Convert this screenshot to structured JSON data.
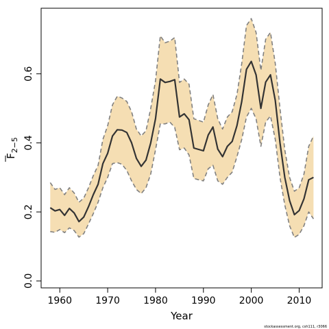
{
  "chart_data": {
    "type": "line",
    "xlabel": "Year",
    "ylabel": {
      "main": "F",
      "subscript": "2−5"
    },
    "xlim": [
      1956.1,
      2014.8
    ],
    "ylim": [
      -0.02,
      0.79
    ],
    "x_ticks": [
      1960,
      1970,
      1980,
      1990,
      2000,
      2010
    ],
    "y_ticks": [
      0.0,
      0.2,
      0.4,
      0.6
    ],
    "y_tick_labels": [
      "0.0",
      "0.2",
      "0.4",
      "0.6"
    ],
    "grid": false,
    "credit": "stockassessment.org, csh111, r3066",
    "colors": {
      "band": "#f5deb3",
      "bound_line": "#808080",
      "estimate_line": "#333333"
    },
    "x": [
      1958,
      1959,
      1960,
      1961,
      1962,
      1963,
      1964,
      1965,
      1966,
      1967,
      1968,
      1969,
      1970,
      1971,
      1972,
      1973,
      1974,
      1975,
      1976,
      1977,
      1978,
      1979,
      1980,
      1981,
      1982,
      1983,
      1984,
      1985,
      1986,
      1987,
      1988,
      1989,
      1990,
      1991,
      1992,
      1993,
      1994,
      1995,
      1996,
      1997,
      1998,
      1999,
      2000,
      2001,
      2002,
      2003,
      2004,
      2005,
      2006,
      2007,
      2008,
      2009,
      2010,
      2011,
      2012,
      2013
    ],
    "series": [
      {
        "role": "estimate",
        "values": [
          0.212,
          0.203,
          0.207,
          0.19,
          0.21,
          0.197,
          0.172,
          0.185,
          0.215,
          0.25,
          0.28,
          0.34,
          0.37,
          0.42,
          0.438,
          0.437,
          0.43,
          0.4,
          0.355,
          0.332,
          0.35,
          0.4,
          0.47,
          0.585,
          0.575,
          0.578,
          0.583,
          0.475,
          0.484,
          0.467,
          0.385,
          0.381,
          0.377,
          0.423,
          0.446,
          0.382,
          0.36,
          0.39,
          0.404,
          0.45,
          0.52,
          0.613,
          0.636,
          0.597,
          0.5,
          0.576,
          0.597,
          0.523,
          0.4,
          0.3,
          0.233,
          0.192,
          0.204,
          0.238,
          0.293,
          0.3
        ]
      },
      {
        "role": "lower_bound",
        "values": [
          0.143,
          0.141,
          0.149,
          0.14,
          0.154,
          0.146,
          0.127,
          0.137,
          0.165,
          0.195,
          0.228,
          0.27,
          0.3,
          0.34,
          0.343,
          0.338,
          0.32,
          0.29,
          0.265,
          0.253,
          0.27,
          0.31,
          0.38,
          0.455,
          0.455,
          0.46,
          0.445,
          0.38,
          0.385,
          0.365,
          0.297,
          0.293,
          0.29,
          0.325,
          0.335,
          0.29,
          0.28,
          0.3,
          0.315,
          0.36,
          0.41,
          0.475,
          0.5,
          0.47,
          0.39,
          0.46,
          0.478,
          0.41,
          0.3,
          0.22,
          0.16,
          0.126,
          0.135,
          0.16,
          0.2,
          0.18
        ]
      },
      {
        "role": "upper_bound",
        "values": [
          0.285,
          0.265,
          0.27,
          0.25,
          0.27,
          0.255,
          0.228,
          0.24,
          0.27,
          0.305,
          0.335,
          0.41,
          0.45,
          0.51,
          0.535,
          0.53,
          0.52,
          0.49,
          0.44,
          0.42,
          0.435,
          0.5,
          0.58,
          0.71,
          0.69,
          0.695,
          0.705,
          0.575,
          0.585,
          0.57,
          0.47,
          0.465,
          0.46,
          0.51,
          0.54,
          0.47,
          0.44,
          0.475,
          0.49,
          0.54,
          0.63,
          0.74,
          0.76,
          0.72,
          0.61,
          0.7,
          0.72,
          0.63,
          0.5,
          0.38,
          0.3,
          0.26,
          0.27,
          0.31,
          0.39,
          0.42
        ]
      }
    ]
  }
}
